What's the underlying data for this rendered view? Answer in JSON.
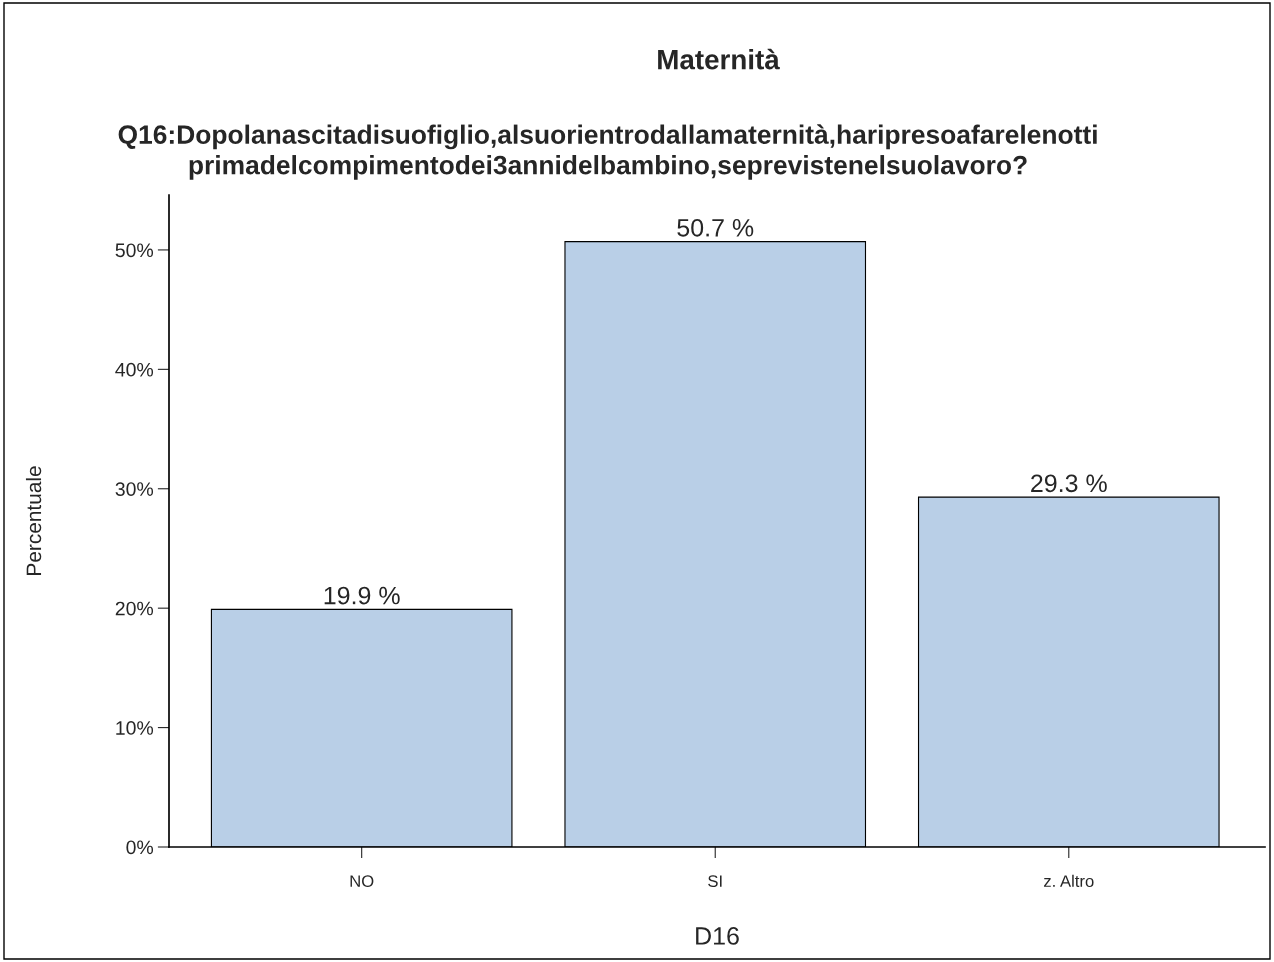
{
  "chart_data": {
    "type": "bar",
    "title": "Maternità",
    "subtitle": "Q16:Dopolanascitadisuofiglio,alsuorientrodallamaternità,haripresoafarelenotti\nprimadelcompimentodei3annidelbambino,seprevistenelsuolavoro?",
    "xlabel": "D16",
    "ylabel": "Percentuale",
    "categories": [
      "NO",
      "SI",
      "z. Altro"
    ],
    "values": [
      19.9,
      50.7,
      29.3
    ],
    "value_labels": [
      "19.9 %",
      "50.7 %",
      "29.3 %"
    ],
    "color": "#b9cfe7",
    "ylim": [
      0,
      54.6
    ],
    "yticks": [
      {
        "value": 0,
        "label": "0%"
      },
      {
        "value": 10,
        "label": "10%"
      },
      {
        "value": 20,
        "label": "20%"
      },
      {
        "value": 30,
        "label": "30%"
      },
      {
        "value": 40,
        "label": "40%"
      },
      {
        "value": 50,
        "label": "50%"
      }
    ],
    "grid": false,
    "legend": false
  }
}
